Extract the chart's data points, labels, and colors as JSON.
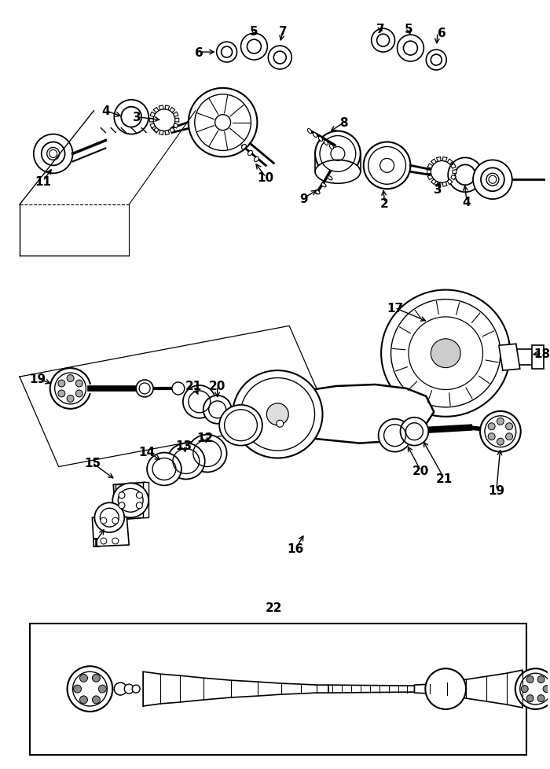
{
  "bg_color": "#ffffff",
  "figsize": [
    7.0,
    9.79
  ],
  "dpi": 100,
  "font_size": 11
}
